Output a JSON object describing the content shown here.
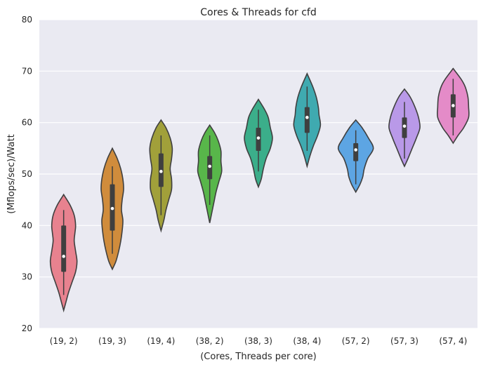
{
  "chart_data": {
    "type": "violin",
    "title": "Cores & Threads for cfd",
    "xlabel": "(Cores, Threads per core)",
    "ylabel": "(Mflops/sec)/Watt",
    "ylim": [
      20,
      80
    ],
    "yticks": [
      "20",
      "30",
      "40",
      "50",
      "60",
      "70",
      "80"
    ],
    "grid": true,
    "categories": [
      "(19, 2)",
      "(19, 3)",
      "(19, 4)",
      "(38, 2)",
      "(38, 3)",
      "(38, 4)",
      "(57, 2)",
      "(57, 3)",
      "(57, 4)"
    ],
    "colors": [
      "#E8828F",
      "#D08C3C",
      "#A1A03A",
      "#58B64A",
      "#3BAE8A",
      "#3FAAB0",
      "#5DA5E3",
      "#B999E8",
      "#E48BC8"
    ],
    "violins": [
      {
        "min": 23.5,
        "max": 46.0,
        "q1": 31.0,
        "median": 34.0,
        "q3": 40.0,
        "whisker_low": 26.5,
        "whisker_high": 43.0,
        "profile": [
          [
            23.5,
            0
          ],
          [
            25,
            3
          ],
          [
            27,
            7
          ],
          [
            29,
            12
          ],
          [
            31,
            17
          ],
          [
            33,
            19
          ],
          [
            35,
            17
          ],
          [
            37,
            15
          ],
          [
            38.5,
            16
          ],
          [
            40,
            17
          ],
          [
            42,
            15
          ],
          [
            44,
            9
          ],
          [
            46,
            0
          ]
        ]
      },
      {
        "min": 31.5,
        "max": 55.0,
        "q1": 39.0,
        "median": 43.3,
        "q3": 48.0,
        "whisker_low": 34.5,
        "whisker_high": 51.5,
        "profile": [
          [
            31.5,
            0
          ],
          [
            33,
            5
          ],
          [
            35,
            9
          ],
          [
            37,
            12
          ],
          [
            39,
            14
          ],
          [
            41,
            15
          ],
          [
            43,
            13
          ],
          [
            45,
            14
          ],
          [
            47,
            16
          ],
          [
            49,
            15
          ],
          [
            51,
            12
          ],
          [
            53,
            7
          ],
          [
            55,
            0
          ]
        ]
      },
      {
        "min": 39.0,
        "max": 60.5,
        "q1": 47.5,
        "median": 50.5,
        "q3": 54.0,
        "whisker_low": 42.0,
        "whisker_high": 57.5,
        "profile": [
          [
            39,
            0
          ],
          [
            41,
            4
          ],
          [
            43,
            7
          ],
          [
            45,
            11
          ],
          [
            47,
            15
          ],
          [
            49,
            15
          ],
          [
            51,
            13
          ],
          [
            53,
            15
          ],
          [
            55,
            16
          ],
          [
            57,
            13
          ],
          [
            59,
            7
          ],
          [
            60.5,
            0
          ]
        ]
      },
      {
        "min": 40.5,
        "max": 59.5,
        "q1": 49.0,
        "median": 51.5,
        "q3": 53.5,
        "whisker_low": 44.0,
        "whisker_high": 57.5,
        "profile": [
          [
            40.5,
            0
          ],
          [
            42.5,
            3
          ],
          [
            44.5,
            6
          ],
          [
            46.5,
            9
          ],
          [
            48.5,
            13
          ],
          [
            50.5,
            17
          ],
          [
            52.5,
            16
          ],
          [
            54.5,
            16
          ],
          [
            56.5,
            12
          ],
          [
            58,
            7
          ],
          [
            59.5,
            0
          ]
        ]
      },
      {
        "min": 47.5,
        "max": 64.5,
        "q1": 54.5,
        "median": 57.0,
        "q3": 59.0,
        "whisker_low": 50.5,
        "whisker_high": 62.5,
        "profile": [
          [
            47.5,
            0
          ],
          [
            49,
            4
          ],
          [
            51,
            7
          ],
          [
            53,
            11
          ],
          [
            55,
            17
          ],
          [
            57,
            20
          ],
          [
            59,
            17
          ],
          [
            61,
            14
          ],
          [
            62.5,
            9
          ],
          [
            64.5,
            0
          ]
        ]
      },
      {
        "min": 51.5,
        "max": 69.5,
        "q1": 58.0,
        "median": 61.0,
        "q3": 63.0,
        "whisker_low": 54.5,
        "whisker_high": 67.0,
        "profile": [
          [
            51.5,
            0
          ],
          [
            53.5,
            4
          ],
          [
            55.5,
            9
          ],
          [
            57.5,
            15
          ],
          [
            59.5,
            19
          ],
          [
            61.5,
            17
          ],
          [
            63,
            16
          ],
          [
            65,
            13
          ],
          [
            67,
            8
          ],
          [
            69.5,
            0
          ]
        ]
      },
      {
        "min": 46.5,
        "max": 60.5,
        "q1": 52.5,
        "median": 54.7,
        "q3": 56.0,
        "whisker_low": 48.0,
        "whisker_high": 58.5,
        "profile": [
          [
            46.5,
            0
          ],
          [
            48,
            6
          ],
          [
            49.5,
            10
          ],
          [
            51,
            12
          ],
          [
            53,
            17
          ],
          [
            55,
            25
          ],
          [
            57,
            18
          ],
          [
            59,
            9
          ],
          [
            60.5,
            0
          ]
        ]
      },
      {
        "min": 51.5,
        "max": 66.5,
        "q1": 57.0,
        "median": 59.3,
        "q3": 61.0,
        "whisker_low": 53.0,
        "whisker_high": 64.0,
        "profile": [
          [
            51.5,
            0
          ],
          [
            53,
            5
          ],
          [
            55,
            11
          ],
          [
            57,
            17
          ],
          [
            59,
            22
          ],
          [
            61,
            20
          ],
          [
            63,
            15
          ],
          [
            65,
            8
          ],
          [
            66.5,
            0
          ]
        ]
      },
      {
        "min": 56.0,
        "max": 70.5,
        "q1": 61.0,
        "median": 63.3,
        "q3": 65.5,
        "whisker_low": 57.5,
        "whisker_high": 68.5,
        "profile": [
          [
            56,
            0
          ],
          [
            57.5,
            7
          ],
          [
            59,
            15
          ],
          [
            61,
            22
          ],
          [
            63,
            22
          ],
          [
            65,
            21
          ],
          [
            67,
            17
          ],
          [
            68.5,
            11
          ],
          [
            70.5,
            0
          ]
        ]
      }
    ]
  }
}
